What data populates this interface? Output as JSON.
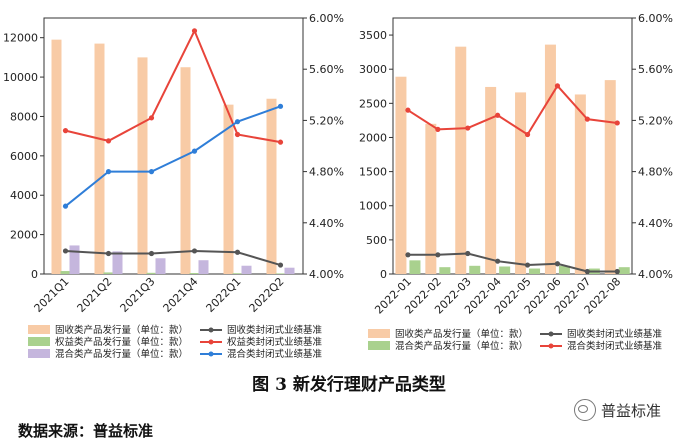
{
  "figure": {
    "caption": "图 3   新发行理财产品类型",
    "source": "数据来源：普益标准",
    "watermark": "普益标准",
    "watermark_icon": "wechat-icon"
  },
  "chart_data": [
    {
      "type": "bar",
      "title": "",
      "categories": [
        "2021Q1",
        "2021Q2",
        "2021Q3",
        "2021Q4",
        "2022Q1",
        "2022Q2"
      ],
      "ylim": [
        0,
        13000
      ],
      "yticks": [
        0,
        2000,
        4000,
        6000,
        8000,
        10000,
        12000
      ],
      "y2lim": [
        4.0,
        6.0
      ],
      "y2ticks": [
        "4.00%",
        "4.40%",
        "4.80%",
        "5.20%",
        "5.60%",
        "6.00%"
      ],
      "bar_series": [
        {
          "name": "固收类产品发行量（单位：款）",
          "color": "#f8cba6",
          "values": [
            11900,
            11700,
            11000,
            10500,
            8600,
            8900
          ]
        },
        {
          "name": "权益类产品发行量（单位：款）",
          "color": "#a9d18e",
          "values": [
            150,
            80,
            60,
            50,
            40,
            30
          ]
        },
        {
          "name": "混合类产品发行量（单位：款）",
          "color": "#c5b6dd",
          "values": [
            1450,
            1150,
            800,
            700,
            420,
            320
          ]
        }
      ],
      "line_series": [
        {
          "name": "固收类封闭式业绩基准",
          "color": "#555555",
          "values": [
            4.18,
            4.16,
            4.16,
            4.18,
            4.17,
            4.07
          ]
        },
        {
          "name": "权益类封闭式业绩基准",
          "color": "#e8443a",
          "values": [
            5.12,
            5.04,
            5.22,
            5.9,
            5.09,
            5.03
          ]
        },
        {
          "name": "混合类封闭式业绩基准",
          "color": "#2f7ed8",
          "values": [
            4.53,
            4.8,
            4.8,
            4.96,
            5.19,
            5.31
          ]
        }
      ]
    },
    {
      "type": "bar",
      "title": "",
      "categories": [
        "2022-01",
        "2022-02",
        "2022-03",
        "2022-04",
        "2022-05",
        "2022-06",
        "2022-07",
        "2022-08"
      ],
      "ylim": [
        0,
        3750
      ],
      "yticks": [
        0,
        500,
        1000,
        1500,
        2000,
        2500,
        3000,
        3500
      ],
      "y2lim": [
        4.0,
        6.0
      ],
      "y2ticks": [
        "4.00%",
        "4.40%",
        "4.80%",
        "5.20%",
        "5.60%",
        "6.00%"
      ],
      "bar_series": [
        {
          "name": "固收类产品发行量（单位：款）",
          "color": "#f8cba6",
          "values": [
            2890,
            2200,
            3330,
            2740,
            2660,
            3360,
            2630,
            2840
          ]
        },
        {
          "name": "混合类产品发行量（单位：款）",
          "color": "#a9d18e",
          "values": [
            200,
            100,
            120,
            110,
            80,
            120,
            80,
            100
          ]
        }
      ],
      "line_series": [
        {
          "name": "固收类封闭式业绩基准",
          "color": "#555555",
          "values": [
            4.15,
            4.15,
            4.16,
            4.1,
            4.07,
            4.08,
            4.02,
            4.02
          ]
        },
        {
          "name": "混合类封闭式业绩基准",
          "color": "#e8443a",
          "values": [
            5.28,
            5.13,
            5.14,
            5.24,
            5.09,
            5.47,
            5.21,
            5.18
          ]
        }
      ]
    }
  ]
}
